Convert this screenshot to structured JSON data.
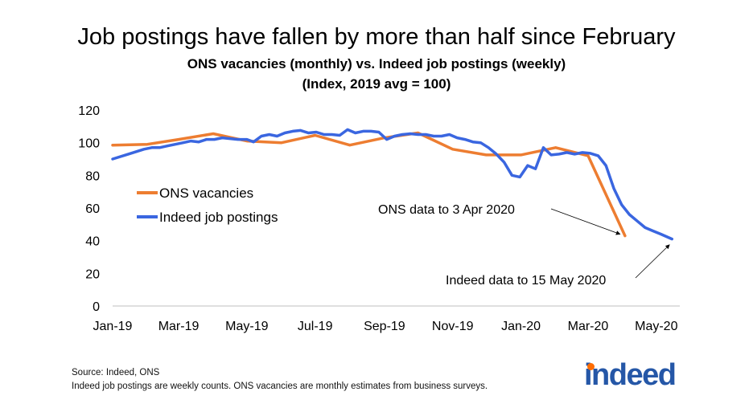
{
  "title": "Job postings have fallen by more than half since February",
  "subtitle_line1": "ONS vacancies (monthly) vs. Indeed job postings (weekly)",
  "subtitle_line2": "(Index, 2019 avg = 100)",
  "footer_source": "Source: Indeed, ONS",
  "footer_note": "Indeed job postings are weekly counts. ONS vacancies are monthly estimates from business surveys.",
  "logo_text": "indeed",
  "colors": {
    "ons": "#ed7d31",
    "indeed": "#3a66e0",
    "logo": "#2557a7",
    "logo_dot": "#ff6c00"
  },
  "chart_data": {
    "type": "line",
    "title": "ONS vacancies (monthly) vs. Indeed job postings (weekly)",
    "ylabel": "",
    "xlabel": "",
    "ylim": [
      0,
      120
    ],
    "yticks": [
      0,
      20,
      40,
      60,
      80,
      100,
      120
    ],
    "xlim": [
      "2019-01-01",
      "2020-05-22"
    ],
    "xticks": [
      {
        "date": "2019-01-01",
        "label": "Jan-19"
      },
      {
        "date": "2019-03-01",
        "label": "Mar-19"
      },
      {
        "date": "2019-05-01",
        "label": "May-19"
      },
      {
        "date": "2019-07-01",
        "label": "Jul-19"
      },
      {
        "date": "2019-09-01",
        "label": "Sep-19"
      },
      {
        "date": "2019-11-01",
        "label": "Nov-19"
      },
      {
        "date": "2020-01-01",
        "label": "Jan-20"
      },
      {
        "date": "2020-03-01",
        "label": "Mar-20"
      },
      {
        "date": "2020-05-01",
        "label": "May-20"
      }
    ],
    "grid": false,
    "legend": "left",
    "series": [
      {
        "name": "ONS vacancies",
        "color": "#ed7d31",
        "points": [
          [
            "2019-01-01",
            98.5
          ],
          [
            "2019-02-01",
            99.0
          ],
          [
            "2019-03-01",
            102.0
          ],
          [
            "2019-04-01",
            105.5
          ],
          [
            "2019-05-01",
            101.0
          ],
          [
            "2019-06-01",
            100.0
          ],
          [
            "2019-07-01",
            104.5
          ],
          [
            "2019-08-01",
            98.5
          ],
          [
            "2019-09-01",
            103.0
          ],
          [
            "2019-10-01",
            106.0
          ],
          [
            "2019-11-01",
            96.0
          ],
          [
            "2019-12-01",
            92.5
          ],
          [
            "2020-01-01",
            92.5
          ],
          [
            "2020-02-01",
            97.0
          ],
          [
            "2020-03-01",
            92.0
          ],
          [
            "2020-04-03",
            43.0
          ]
        ]
      },
      {
        "name": "Indeed job postings",
        "color": "#3a66e0",
        "points": [
          [
            "2019-01-01",
            90.0
          ],
          [
            "2019-01-15",
            93.0
          ],
          [
            "2019-01-29",
            96.0
          ],
          [
            "2019-02-05",
            97.0
          ],
          [
            "2019-02-12",
            97.0
          ],
          [
            "2019-02-19",
            98.0
          ],
          [
            "2019-03-05",
            100.0
          ],
          [
            "2019-03-12",
            101.0
          ],
          [
            "2019-03-19",
            100.5
          ],
          [
            "2019-03-26",
            102.0
          ],
          [
            "2019-04-02",
            102.0
          ],
          [
            "2019-04-09",
            103.0
          ],
          [
            "2019-04-23",
            102.0
          ],
          [
            "2019-05-01",
            102.0
          ],
          [
            "2019-05-07",
            100.5
          ],
          [
            "2019-05-14",
            104.0
          ],
          [
            "2019-05-21",
            105.0
          ],
          [
            "2019-05-28",
            104.0
          ],
          [
            "2019-06-04",
            106.0
          ],
          [
            "2019-06-11",
            107.0
          ],
          [
            "2019-06-18",
            107.5
          ],
          [
            "2019-06-25",
            106.0
          ],
          [
            "2019-07-02",
            106.5
          ],
          [
            "2019-07-09",
            105.0
          ],
          [
            "2019-07-16",
            105.0
          ],
          [
            "2019-07-23",
            104.5
          ],
          [
            "2019-07-30",
            108.0
          ],
          [
            "2019-08-06",
            106.0
          ],
          [
            "2019-08-13",
            107.0
          ],
          [
            "2019-08-20",
            107.0
          ],
          [
            "2019-08-27",
            106.5
          ],
          [
            "2019-09-03",
            102.0
          ],
          [
            "2019-09-10",
            104.0
          ],
          [
            "2019-09-17",
            105.0
          ],
          [
            "2019-09-24",
            105.5
          ],
          [
            "2019-10-01",
            105.0
          ],
          [
            "2019-10-08",
            105.0
          ],
          [
            "2019-10-15",
            104.0
          ],
          [
            "2019-10-22",
            104.0
          ],
          [
            "2019-10-29",
            105.0
          ],
          [
            "2019-11-05",
            103.0
          ],
          [
            "2019-11-12",
            102.0
          ],
          [
            "2019-11-19",
            100.5
          ],
          [
            "2019-11-26",
            100.0
          ],
          [
            "2019-12-03",
            97.0
          ],
          [
            "2019-12-10",
            93.0
          ],
          [
            "2019-12-17",
            88.0
          ],
          [
            "2019-12-24",
            80.0
          ],
          [
            "2019-12-31",
            79.0
          ],
          [
            "2020-01-07",
            86.0
          ],
          [
            "2020-01-14",
            84.0
          ],
          [
            "2020-01-21",
            97.0
          ],
          [
            "2020-01-28",
            92.5
          ],
          [
            "2020-02-04",
            93.0
          ],
          [
            "2020-02-11",
            94.0
          ],
          [
            "2020-02-18",
            93.0
          ],
          [
            "2020-02-25",
            94.0
          ],
          [
            "2020-03-03",
            93.5
          ],
          [
            "2020-03-10",
            92.0
          ],
          [
            "2020-03-17",
            86.0
          ],
          [
            "2020-03-24",
            72.0
          ],
          [
            "2020-03-31",
            62.0
          ],
          [
            "2020-04-07",
            56.0
          ],
          [
            "2020-04-14",
            52.0
          ],
          [
            "2020-04-21",
            48.0
          ],
          [
            "2020-04-28",
            46.0
          ],
          [
            "2020-05-05",
            44.0
          ],
          [
            "2020-05-15",
            41.0
          ]
        ]
      }
    ],
    "annotations": [
      {
        "text": "ONS data to 3 Apr 2020",
        "target": [
          "2020-04-03",
          43.0
        ]
      },
      {
        "text": "Indeed data to 15 May 2020",
        "target": [
          "2020-05-15",
          41.0
        ]
      }
    ]
  }
}
